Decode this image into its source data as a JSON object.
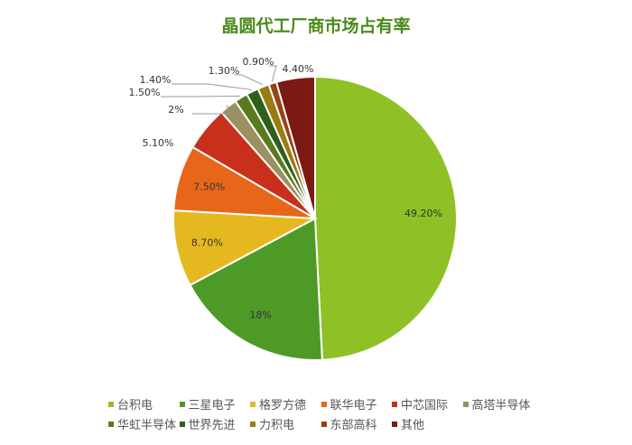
{
  "chart_data": {
    "type": "pie",
    "title": "晶圆代工厂商市场占有率",
    "categories": [
      "台积电",
      "三星电子",
      "格罗方德",
      "联华电子",
      "中芯国际",
      "高塔半导体",
      "华虹半导体",
      "世界先进",
      "力积电",
      "东部高科",
      "其他"
    ],
    "values": [
      49.2,
      18,
      8.7,
      7.5,
      5.1,
      2,
      1.5,
      1.4,
      1.3,
      0.9,
      4.4
    ],
    "labels": [
      "49.20%",
      "18%",
      "8.70%",
      "7.50%",
      "5.10%",
      "2%",
      "1.50%",
      "1.40%",
      "1.30%",
      "0.90%",
      "4.40%"
    ],
    "colors": [
      "#8fc127",
      "#4e9a26",
      "#e6b81f",
      "#e8661a",
      "#c9301c",
      "#9a9060",
      "#5a7a1e",
      "#2f5f18",
      "#9a7a12",
      "#9a4212",
      "#7a1a12"
    ],
    "legend_position": "bottom"
  }
}
